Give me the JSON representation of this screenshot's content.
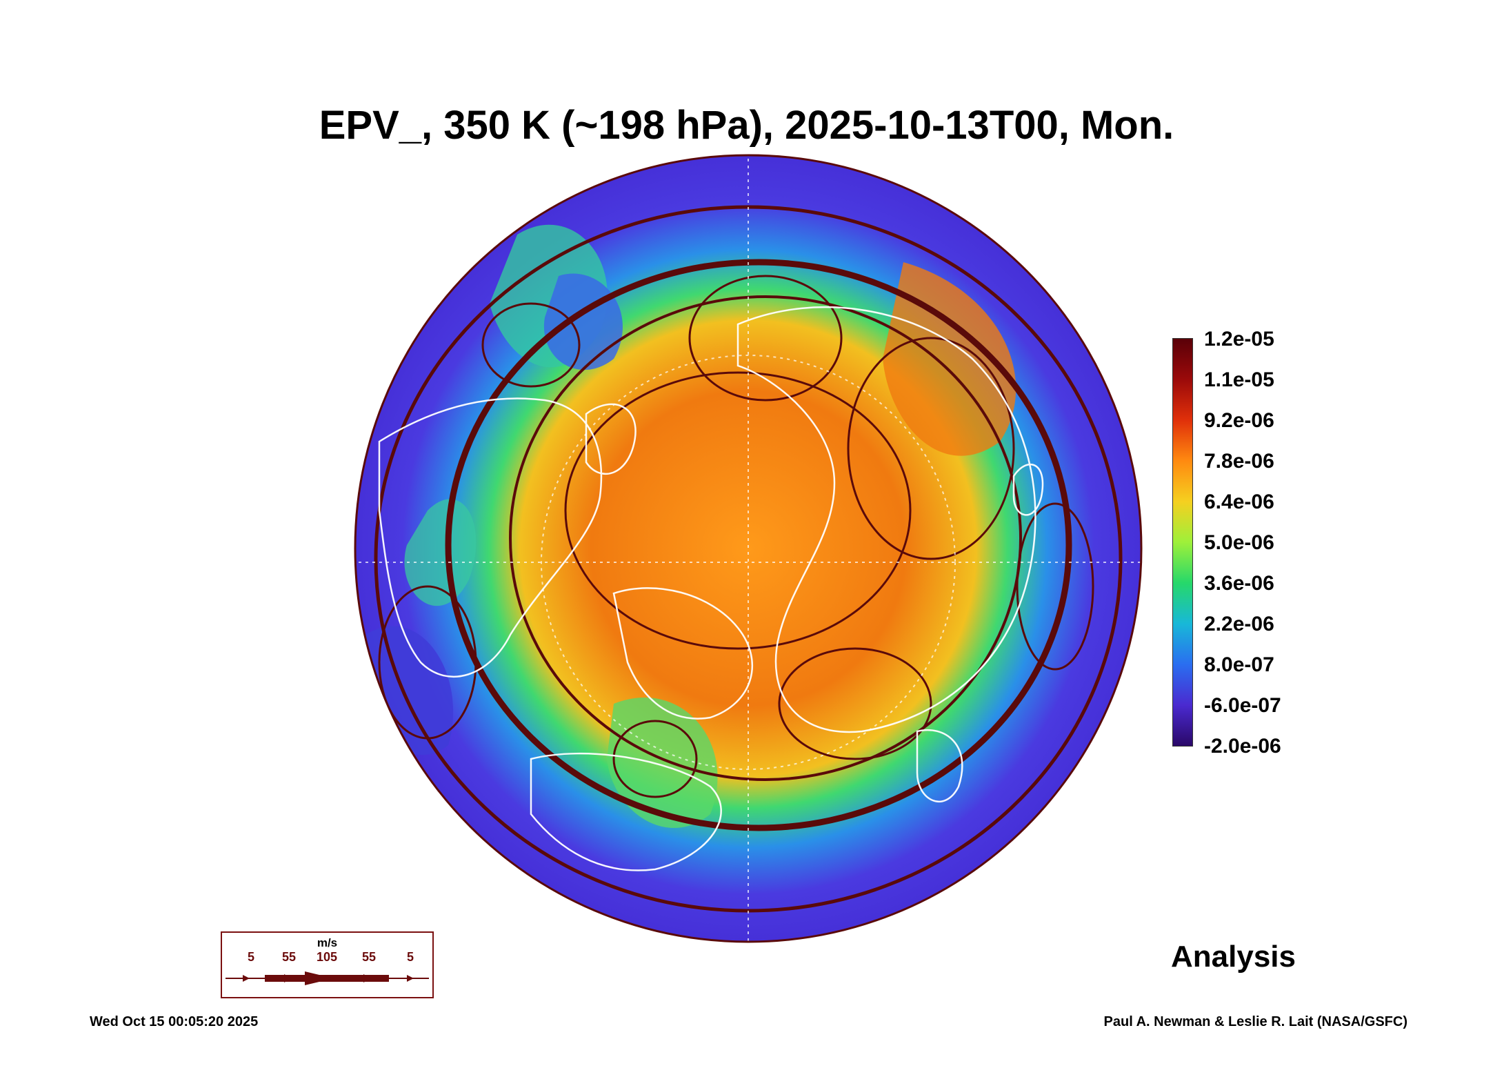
{
  "title": "EPV_, 350 K (~198 hPa), 2025-10-13T00, Mon.",
  "colorbar": {
    "labels": [
      "1.2e-05",
      "1.1e-05",
      "9.2e-06",
      "7.8e-06",
      "6.4e-06",
      "5.0e-06",
      "3.6e-06",
      "2.2e-06",
      "8.0e-07",
      "-6.0e-07",
      "-2.0e-06"
    ],
    "colors": [
      "#5a0008",
      "#9b0a0a",
      "#e0300a",
      "#ff8a10",
      "#f5d020",
      "#9ef03a",
      "#26d86a",
      "#18b8d8",
      "#2a6ef0",
      "#4a2ad0",
      "#2a0868"
    ]
  },
  "wind_legend": {
    "unit": "m/s",
    "values": [
      "5",
      "55",
      "105",
      "55",
      "5"
    ],
    "color": "#6b0b0b"
  },
  "analysis_label": "Analysis",
  "footer": {
    "timestamp": "Wed Oct 15 00:05:20 2025",
    "credit": "Paul A. Newman & Leslie R. Lait (NASA/GSFC)"
  }
}
